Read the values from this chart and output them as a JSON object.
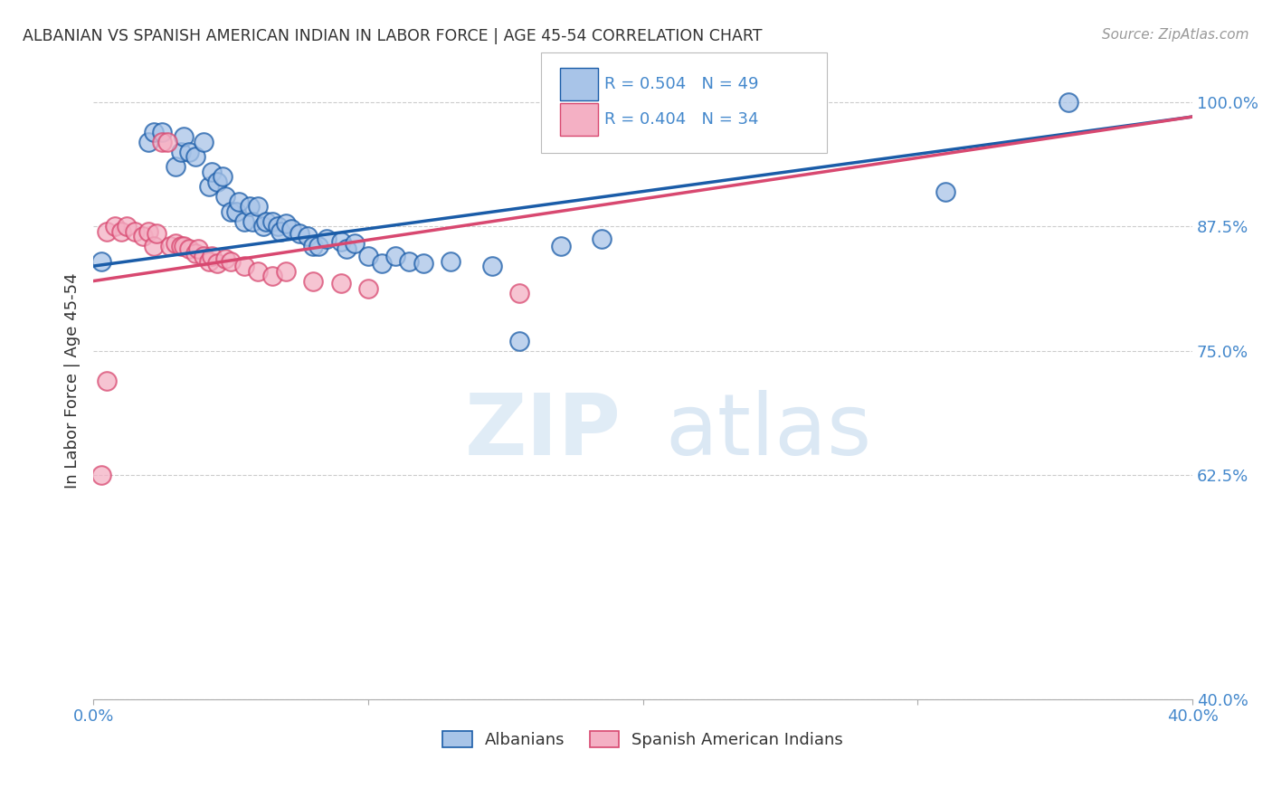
{
  "title": "ALBANIAN VS SPANISH AMERICAN INDIAN IN LABOR FORCE | AGE 45-54 CORRELATION CHART",
  "source": "Source: ZipAtlas.com",
  "ylabel": "In Labor Force | Age 45-54",
  "yticks": [
    0.4,
    0.625,
    0.75,
    0.875,
    1.0
  ],
  "ytick_labels": [
    "40.0%",
    "62.5%",
    "75.0%",
    "87.5%",
    "100.0%"
  ],
  "xlim": [
    0.0,
    0.4
  ],
  "ylim": [
    0.4,
    1.04
  ],
  "legend_blue_r": "R = 0.504",
  "legend_blue_n": "N = 49",
  "legend_pink_r": "R = 0.404",
  "legend_pink_n": "N = 34",
  "legend_label_blue": "Albanians",
  "legend_label_pink": "Spanish American Indians",
  "blue_scatter_x": [
    0.003,
    0.02,
    0.022,
    0.025,
    0.03,
    0.032,
    0.033,
    0.035,
    0.037,
    0.04,
    0.042,
    0.043,
    0.045,
    0.047,
    0.048,
    0.05,
    0.052,
    0.053,
    0.055,
    0.057,
    0.058,
    0.06,
    0.062,
    0.063,
    0.065,
    0.067,
    0.068,
    0.07,
    0.072,
    0.075,
    0.078,
    0.08,
    0.082,
    0.085,
    0.09,
    0.092,
    0.095,
    0.1,
    0.105,
    0.11,
    0.115,
    0.12,
    0.13,
    0.145,
    0.155,
    0.17,
    0.185,
    0.31,
    0.355
  ],
  "blue_scatter_y": [
    0.84,
    0.96,
    0.97,
    0.97,
    0.935,
    0.95,
    0.965,
    0.95,
    0.945,
    0.96,
    0.915,
    0.93,
    0.92,
    0.925,
    0.905,
    0.89,
    0.89,
    0.9,
    0.88,
    0.895,
    0.88,
    0.895,
    0.875,
    0.88,
    0.88,
    0.875,
    0.87,
    0.878,
    0.872,
    0.868,
    0.865,
    0.855,
    0.855,
    0.862,
    0.86,
    0.852,
    0.858,
    0.845,
    0.838,
    0.845,
    0.84,
    0.838,
    0.84,
    0.835,
    0.76,
    0.855,
    0.862,
    0.91,
    1.0
  ],
  "pink_scatter_x": [
    0.003,
    0.005,
    0.008,
    0.01,
    0.012,
    0.015,
    0.018,
    0.02,
    0.022,
    0.023,
    0.025,
    0.027,
    0.028,
    0.03,
    0.032,
    0.033,
    0.035,
    0.037,
    0.038,
    0.04,
    0.042,
    0.043,
    0.045,
    0.048,
    0.05,
    0.055,
    0.06,
    0.065,
    0.07,
    0.08,
    0.09,
    0.1,
    0.155,
    0.005
  ],
  "pink_scatter_y": [
    0.625,
    0.87,
    0.875,
    0.87,
    0.875,
    0.87,
    0.865,
    0.87,
    0.855,
    0.868,
    0.96,
    0.96,
    0.855,
    0.858,
    0.855,
    0.855,
    0.852,
    0.848,
    0.852,
    0.845,
    0.84,
    0.845,
    0.838,
    0.842,
    0.84,
    0.835,
    0.83,
    0.825,
    0.83,
    0.82,
    0.818,
    0.812,
    0.808,
    0.72
  ],
  "blue_trendline": [
    0.0,
    0.4,
    0.835,
    0.985
  ],
  "pink_trendline": [
    0.0,
    0.4,
    0.82,
    0.985
  ],
  "blue_color": "#a8c4e8",
  "pink_color": "#f4b0c4",
  "blue_line_color": "#1a5ca8",
  "pink_line_color": "#d84870",
  "watermark_zip": "ZIP",
  "watermark_atlas": "atlas",
  "grid_color": "#cccccc",
  "title_color": "#333333",
  "axis_color": "#4488cc",
  "source_color": "#999999"
}
